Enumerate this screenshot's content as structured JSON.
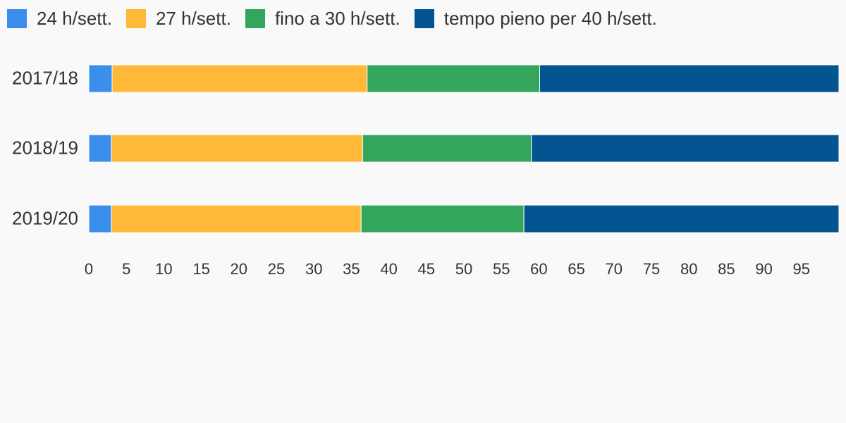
{
  "chart_data": {
    "type": "bar",
    "orientation": "horizontal",
    "stacked": true,
    "categories": [
      "2017/18",
      "2018/19",
      "2019/20"
    ],
    "series": [
      {
        "name": "24 h/sett.",
        "color": "#3a8fec",
        "values": [
          3.1,
          3.0,
          3.0
        ]
      },
      {
        "name": "27 h/sett.",
        "color": "#ffb838",
        "values": [
          34.0,
          33.5,
          33.3
        ]
      },
      {
        "name": "fino a 30 h/sett.",
        "color": "#33a65c",
        "values": [
          23.0,
          22.5,
          21.7
        ]
      },
      {
        "name": "tempo pieno per 40 h/sett.",
        "color": "#035591",
        "values": [
          39.9,
          41.0,
          42.0
        ]
      }
    ],
    "xlim": [
      0,
      100
    ],
    "xticks": [
      0,
      5,
      10,
      15,
      20,
      25,
      30,
      35,
      40,
      45,
      50,
      55,
      60,
      65,
      70,
      75,
      80,
      85,
      90,
      95
    ],
    "legend_position": "top-left",
    "grid": false
  }
}
